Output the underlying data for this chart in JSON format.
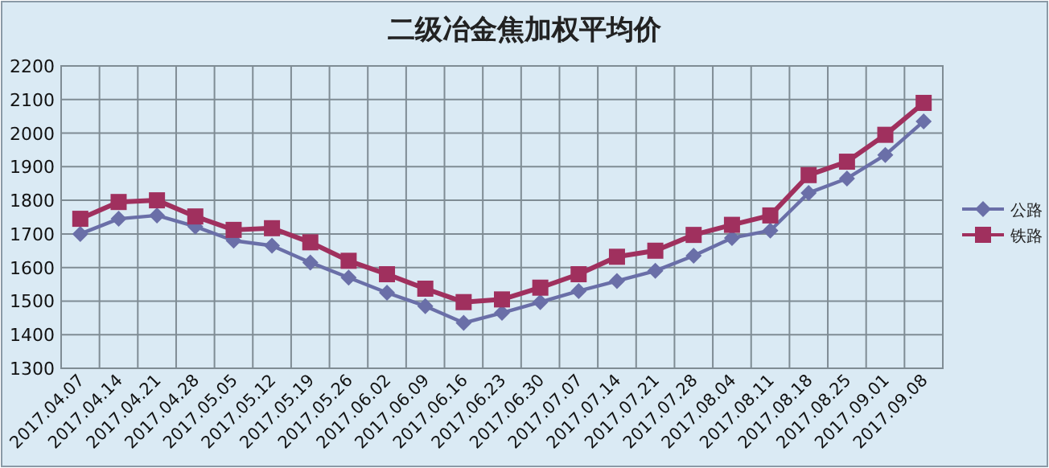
{
  "chart_data": {
    "type": "line",
    "title": "二级冶金焦加权平均价",
    "categories": [
      "2017.04.07",
      "2017.04.14",
      "2017.04.21",
      "2017.04.28",
      "2017.05.05",
      "2017.05.12",
      "2017.05.19",
      "2017.05.26",
      "2017.06.02",
      "2017.06.09",
      "2017.06.16",
      "2017.06.23",
      "2017.06.30",
      "2017.07.07",
      "2017.07.14",
      "2017.07.21",
      "2017.07.28",
      "2017.08.04",
      "2017.08.11",
      "2017.08.18",
      "2017.08.25",
      "2017.09.01",
      "2017.09.08"
    ],
    "series": [
      {
        "name": "公路",
        "color": "#6a6fa8",
        "marker": "diamond",
        "values": [
          1700,
          1745,
          1755,
          1722,
          1680,
          1665,
          1615,
          1570,
          1525,
          1485,
          1435,
          1465,
          1497,
          1530,
          1560,
          1590,
          1635,
          1688,
          1710,
          1822,
          1865,
          1935,
          2035
        ]
      },
      {
        "name": "铁路",
        "color": "#a0305e",
        "marker": "square",
        "values": [
          1745,
          1795,
          1800,
          1752,
          1712,
          1717,
          1675,
          1620,
          1580,
          1537,
          1497,
          1505,
          1540,
          1580,
          1632,
          1650,
          1697,
          1727,
          1755,
          1875,
          1915,
          1995,
          2090
        ]
      }
    ],
    "ylim": [
      1300,
      2200
    ],
    "yticks": [
      1300,
      1400,
      1500,
      1600,
      1700,
      1800,
      1900,
      2000,
      2100,
      2200
    ],
    "grid": true,
    "legend": "right"
  }
}
